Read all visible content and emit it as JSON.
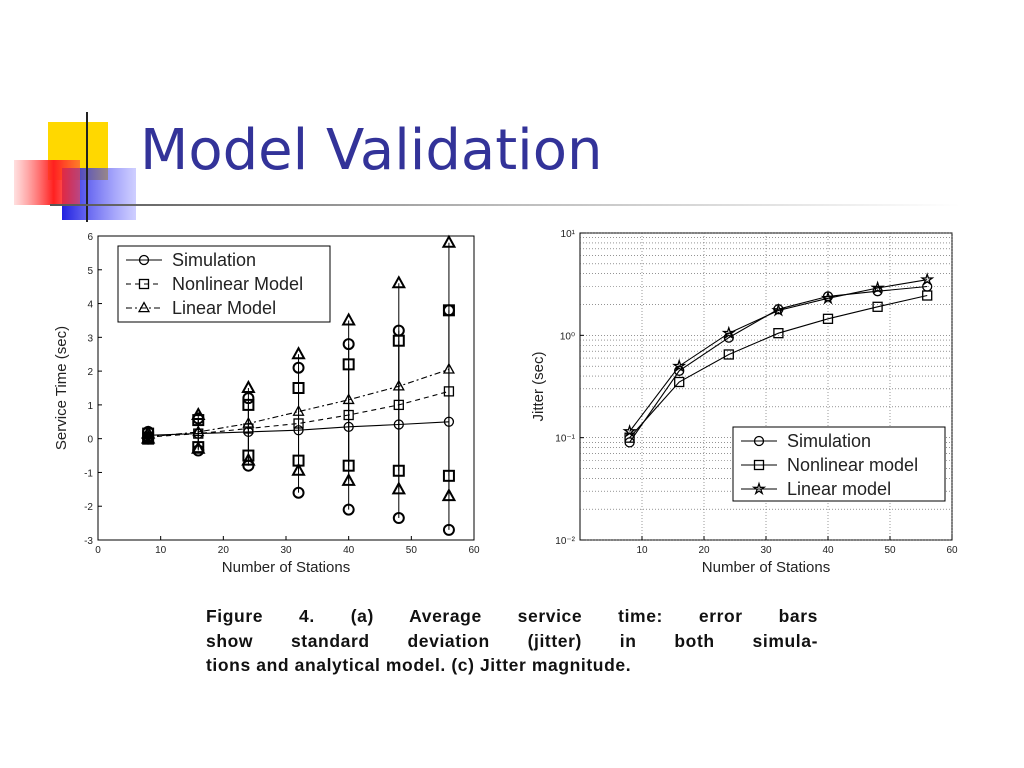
{
  "title": "Model Validation",
  "caption_lines": [
    "Figure 4. (a) Average service time: error bars",
    "show standard deviation (jitter) in both simula-",
    "tions and analytical model. (c) Jitter magnitude."
  ],
  "chart_data": [
    {
      "type": "errorbar",
      "x_label": "Number of Stations",
      "y_label": "Service Time (sec)",
      "x": [
        8,
        16,
        24,
        32,
        40,
        48,
        56
      ],
      "xlim": [
        0,
        60
      ],
      "xticks": [
        0,
        10,
        20,
        30,
        40,
        50,
        60
      ],
      "ylim": [
        -3,
        6
      ],
      "yticks": [
        -3,
        -2,
        -1,
        0,
        1,
        2,
        3,
        4,
        5,
        6
      ],
      "grid": false,
      "log_y": false,
      "legend": "upper left",
      "series": [
        {
          "name": "Simulation",
          "color": "#000000",
          "marker": "o",
          "linestyle": "-",
          "values": [
            0.1,
            0.15,
            0.2,
            0.25,
            0.35,
            0.42,
            0.5
          ],
          "error_low": [
            0.0,
            -0.35,
            -0.8,
            -1.6,
            -2.1,
            -2.35,
            -2.7
          ],
          "error_high": [
            0.2,
            0.6,
            1.2,
            2.1,
            2.8,
            3.2,
            3.8
          ]
        },
        {
          "name": "Nonlinear Model",
          "color": "#000000",
          "marker": "s",
          "linestyle": "--",
          "values": [
            0.05,
            0.15,
            0.3,
            0.45,
            0.7,
            1.0,
            1.4
          ],
          "error_low": [
            0.0,
            -0.25,
            -0.5,
            -0.65,
            -0.8,
            -0.95,
            -1.1
          ],
          "error_high": [
            0.15,
            0.55,
            1.0,
            1.5,
            2.2,
            2.9,
            3.8
          ]
        },
        {
          "name": "Linear Model",
          "color": "#000000",
          "marker": "^",
          "linestyle": "-.",
          "values": [
            0.05,
            0.2,
            0.45,
            0.8,
            1.15,
            1.55,
            2.05
          ],
          "error_low": [
            0.0,
            -0.3,
            -0.65,
            -0.95,
            -1.25,
            -1.5,
            -1.7
          ],
          "error_high": [
            0.15,
            0.7,
            1.5,
            2.5,
            3.5,
            4.6,
            5.8
          ]
        }
      ]
    },
    {
      "type": "line",
      "x_label": "Number of Stations",
      "y_label": "Jitter (sec)",
      "x": [
        8,
        16,
        24,
        32,
        40,
        48,
        56
      ],
      "xlim": [
        0,
        60
      ],
      "xticks": [
        10,
        20,
        30,
        40,
        50,
        60
      ],
      "ylim": [
        0.01,
        10
      ],
      "yticks": [
        {
          "value": 0.01,
          "label": "10⁻²"
        },
        {
          "value": 0.1,
          "label": "10⁻¹"
        },
        {
          "value": 1,
          "label": "10⁰"
        },
        {
          "value": 10,
          "label": "10¹"
        }
      ],
      "grid": true,
      "log_y": true,
      "legend": "lower right",
      "series": [
        {
          "name": "Simulation",
          "color": "#000000",
          "marker": "o",
          "linestyle": "-",
          "values": [
            0.09,
            0.45,
            0.95,
            1.8,
            2.4,
            2.7,
            3.0
          ]
        },
        {
          "name": "Nonlinear model",
          "color": "#000000",
          "marker": "s",
          "linestyle": "-",
          "values": [
            0.1,
            0.35,
            0.65,
            1.05,
            1.45,
            1.9,
            2.45
          ]
        },
        {
          "name": "Linear model",
          "color": "#000000",
          "marker": "*",
          "linestyle": "-",
          "values": [
            0.115,
            0.5,
            1.05,
            1.75,
            2.3,
            2.9,
            3.5
          ]
        }
      ]
    }
  ]
}
